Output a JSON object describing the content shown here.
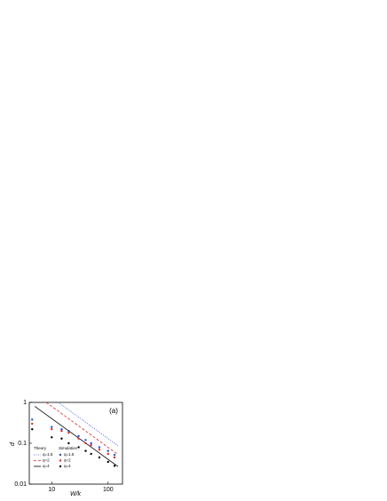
{
  "chart_data": {
    "type": "line",
    "xlabel": "W/k",
    "ylabel": "d",
    "annotation": "(a)",
    "xscale": "log",
    "yscale": "log",
    "xlim": [
      4,
      180
    ],
    "ylim": [
      0.01,
      1
    ],
    "xticks": [
      10,
      100
    ],
    "yticks": [
      0.01,
      0.1,
      1
    ],
    "legend_titles": [
      "Theory",
      "Simulation"
    ],
    "series": [
      {
        "name": "q=1.5",
        "mode": "line",
        "dash": "1,1.5",
        "color": "#2a4de0",
        "x": [
          13,
          150
        ],
        "y": [
          1.0,
          0.087
        ]
      },
      {
        "name": "q=2",
        "mode": "line",
        "dash": "3,2",
        "color": "#e02a2a",
        "x": [
          8,
          150
        ],
        "y": [
          1.0,
          0.053
        ]
      },
      {
        "name": "q=4",
        "mode": "line",
        "dash": "none",
        "color": "#000000",
        "x": [
          5,
          150
        ],
        "y": [
          0.8,
          0.027
        ]
      },
      {
        "name": "q=1.5",
        "mode": "markers",
        "color": "#2a4de0",
        "x": [
          4.5,
          10,
          15,
          20,
          30,
          40,
          50,
          70,
          100,
          130
        ],
        "y": [
          0.38,
          0.25,
          0.22,
          0.2,
          0.15,
          0.12,
          0.1,
          0.08,
          0.065,
          0.052
        ]
      },
      {
        "name": "q=2",
        "mode": "markers",
        "color": "#e02a2a",
        "x": [
          4.5,
          10,
          15,
          20,
          30,
          40,
          50,
          70,
          100,
          130
        ],
        "y": [
          0.3,
          0.22,
          0.2,
          0.18,
          0.13,
          0.1,
          0.09,
          0.07,
          0.055,
          0.045
        ]
      },
      {
        "name": "q=4",
        "mode": "markers",
        "color": "#000000",
        "x": [
          4.5,
          10,
          15,
          20,
          30,
          40,
          50,
          70,
          100,
          130
        ],
        "y": [
          0.22,
          0.14,
          0.13,
          0.1,
          0.08,
          0.065,
          0.055,
          0.045,
          0.035,
          0.028
        ]
      }
    ]
  }
}
